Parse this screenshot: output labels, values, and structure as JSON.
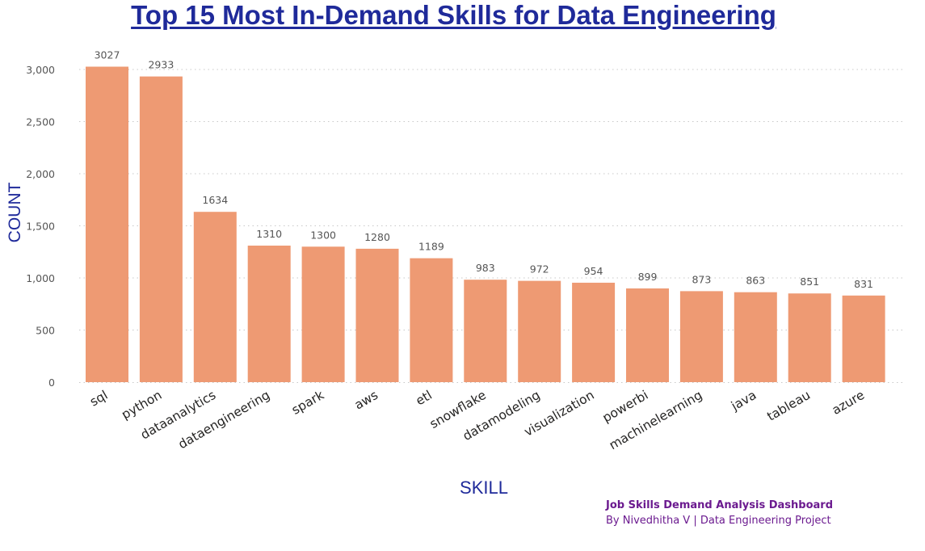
{
  "chart_data": {
    "type": "bar",
    "title": "Top 15 Most In-Demand Skills for Data Engineering",
    "xlabel": "SKILL",
    "ylabel": "COUNT",
    "categories": [
      "sql",
      "python",
      "dataanalytics",
      "dataengineering",
      "spark",
      "aws",
      "etl",
      "snowflake",
      "datamodeling",
      "visualization",
      "powerbi",
      "machinelearning",
      "java",
      "tableau",
      "azure"
    ],
    "values": [
      3027,
      2933,
      1634,
      1310,
      1300,
      1280,
      1189,
      983,
      972,
      954,
      899,
      873,
      863,
      851,
      831
    ],
    "data_labels": [
      "3027",
      "2933",
      "1634",
      "1310",
      "1300",
      "1280",
      "1189",
      "983",
      "972",
      "954",
      "899",
      "873",
      "863",
      "851",
      "831"
    ],
    "ylim": [
      0,
      3000
    ],
    "yticks": [
      0,
      500,
      1000,
      1500,
      2000,
      2500,
      3000
    ],
    "ytick_labels": [
      "0",
      "500",
      "1,000",
      "1,500",
      "2,000",
      "2,500",
      "3,000"
    ],
    "grid": "horizontal dotted",
    "bar_color": "#ee9a73",
    "title_color": "#1f2a9a",
    "axis_title_color": "#1f2a9a"
  },
  "footer": {
    "line1": "Job Skills Demand Analysis Dashboard",
    "line2": "By Nivedhitha V | Data Engineering Project",
    "color": "#6b1a8f"
  }
}
